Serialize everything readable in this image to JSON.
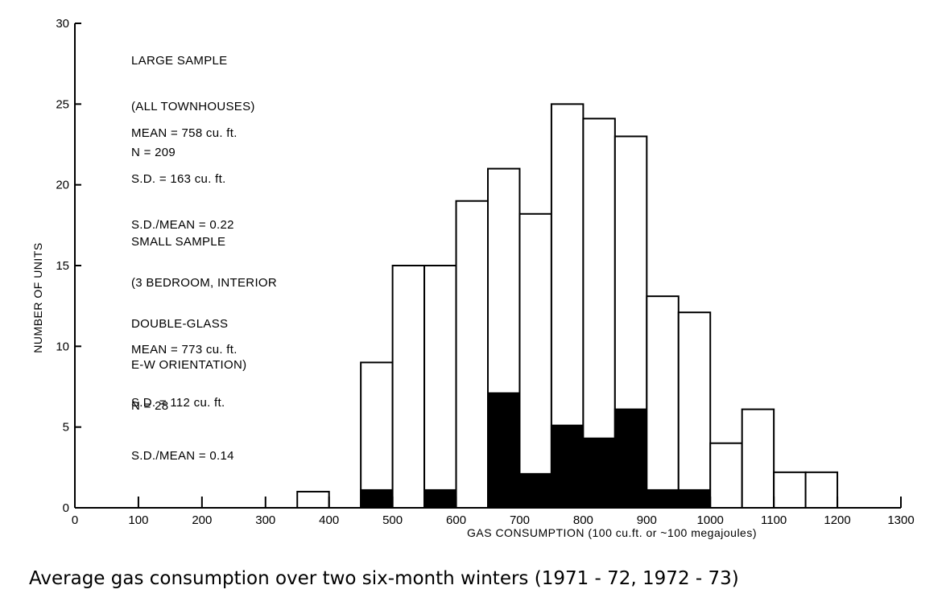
{
  "chart_data": {
    "type": "bar",
    "xlabel": "GAS CONSUMPTION (100 cu.ft. or ~100 megajoules)",
    "ylabel": "NUMBER OF UNITS",
    "xlim": [
      0,
      1300
    ],
    "ylim": [
      0,
      30
    ],
    "x_ticks": [
      "0",
      "100",
      "200",
      "300",
      "400",
      "500",
      "600",
      "700",
      "800",
      "900",
      "1000",
      "1100",
      "1200",
      "1300"
    ],
    "y_ticks": [
      "0",
      "5",
      "10",
      "15",
      "20",
      "25",
      "30"
    ],
    "bin_width": 50,
    "bin_starts": [
      350,
      450,
      500,
      550,
      600,
      650,
      700,
      750,
      800,
      850,
      900,
      950,
      1000,
      1050,
      1100,
      1150
    ],
    "series": [
      {
        "name": "LARGE SAMPLE",
        "fill": "white",
        "values": [
          1,
          9,
          15,
          15,
          19,
          21,
          18.2,
          25,
          24.1,
          23,
          13.1,
          12.1,
          4,
          6.1,
          2.2,
          2.2
        ]
      },
      {
        "name": "SMALL SAMPLE",
        "fill": "black",
        "values": [
          0,
          1.1,
          0,
          1.1,
          0,
          7.1,
          2.1,
          5.1,
          4.3,
          6.1,
          1.1,
          1.1,
          0,
          0,
          0,
          0
        ]
      }
    ]
  },
  "annotations": {
    "large_sample": {
      "title_lines": [
        "LARGE SAMPLE",
        "(ALL TOWNHOUSES)",
        "N = 209"
      ],
      "stat_lines": [
        "MEAN = 758 cu. ft.",
        "S.D. = 163 cu. ft.",
        "S.D./MEAN = 0.22"
      ]
    },
    "small_sample": {
      "title_lines": [
        "SMALL SAMPLE",
        "(3 BEDROOM, INTERIOR",
        "DOUBLE-GLASS",
        "E-W ORIENTATION)",
        "N = 28"
      ],
      "stat_lines": [
        "MEAN = 773 cu. ft.",
        "S.D. = 112 cu. ft.",
        "S.D./MEAN = 0.14"
      ]
    }
  },
  "caption": "Average gas consumption over two six-month winters (1971 - 72, 1972 - 73)"
}
